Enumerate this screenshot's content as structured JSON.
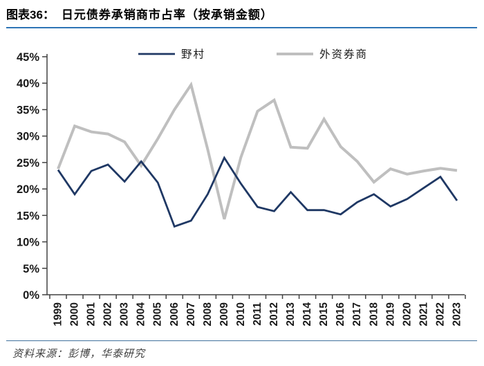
{
  "header": {
    "figure_label": "图表36：",
    "figure_title": "日元债券承销商市占率（按承销金额）"
  },
  "footer": {
    "source": "资料来源：彭博，华泰研究"
  },
  "colors": {
    "nomura_blue": "#1F3864",
    "foreign_gray": "#BFBFBF",
    "title_rule_blue": "#2E74B5",
    "footer_rule_blue": "#41719C",
    "axis": "#404040",
    "tick_label": "#1a1a1a"
  },
  "chart_data": {
    "type": "line",
    "title": "日元债券承销商市占率（按承销金额）",
    "x": [
      1999,
      2000,
      2001,
      2002,
      2003,
      2004,
      2005,
      2006,
      2007,
      2008,
      2009,
      2010,
      2011,
      2012,
      2013,
      2014,
      2015,
      2016,
      2017,
      2018,
      2019,
      2020,
      2021,
      2022,
      2023
    ],
    "series": [
      {
        "name": "野村",
        "color": "#1F3864",
        "values": [
          23.6,
          19.0,
          23.4,
          24.6,
          21.4,
          25.2,
          21.2,
          12.9,
          14.0,
          19.0,
          25.9,
          21.0,
          16.6,
          15.8,
          19.4,
          16.0,
          16.0,
          15.2,
          17.5,
          19.0,
          16.7,
          18.1,
          20.2,
          22.3,
          17.8
        ]
      },
      {
        "name": "外资券商",
        "color": "#BFBFBF",
        "values": [
          23.8,
          31.9,
          30.8,
          30.4,
          28.9,
          24.4,
          29.5,
          35.0,
          39.7,
          27.5,
          14.3,
          26.0,
          34.7,
          36.8,
          27.9,
          27.7,
          33.2,
          28.0,
          25.2,
          21.3,
          23.8,
          22.8,
          23.4,
          23.9,
          23.5
        ]
      }
    ],
    "ylim": [
      0,
      45
    ],
    "ytick_step": 5,
    "ytick_suffix": "%",
    "xlabel": "",
    "ylabel": "",
    "grid": false,
    "legend_position": "top-center"
  }
}
